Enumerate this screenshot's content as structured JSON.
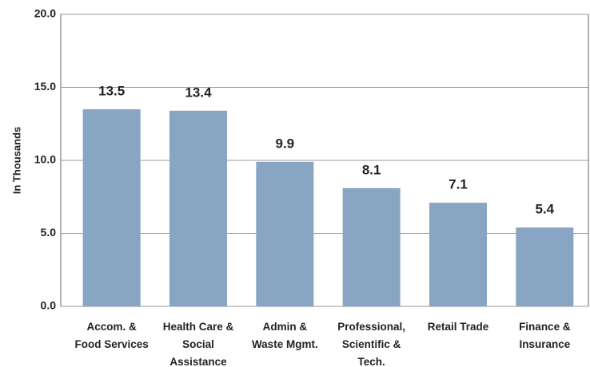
{
  "chart_data": {
    "type": "bar",
    "y_label": "In Thousands",
    "categories": [
      [
        "Accom. &",
        "Food Services"
      ],
      [
        "Health Care &",
        "Social",
        "Assistance"
      ],
      [
        "Admin &",
        "Waste Mgmt."
      ],
      [
        "Professional,",
        "Scientific &",
        "Tech."
      ],
      [
        "Retail Trade"
      ],
      [
        "Finance &",
        "Insurance"
      ]
    ],
    "values": [
      13.5,
      13.4,
      9.9,
      8.1,
      7.1,
      5.4
    ],
    "color": "#88a5c4",
    "ylim": [
      0,
      20
    ],
    "yticks": [
      {
        "value": 0,
        "label": "0.0"
      },
      {
        "value": 5,
        "label": "5.0"
      },
      {
        "value": 10,
        "label": "10.0"
      },
      {
        "value": 15,
        "label": "15.0"
      },
      {
        "value": 20,
        "label": "20.0"
      }
    ],
    "grid": true
  }
}
